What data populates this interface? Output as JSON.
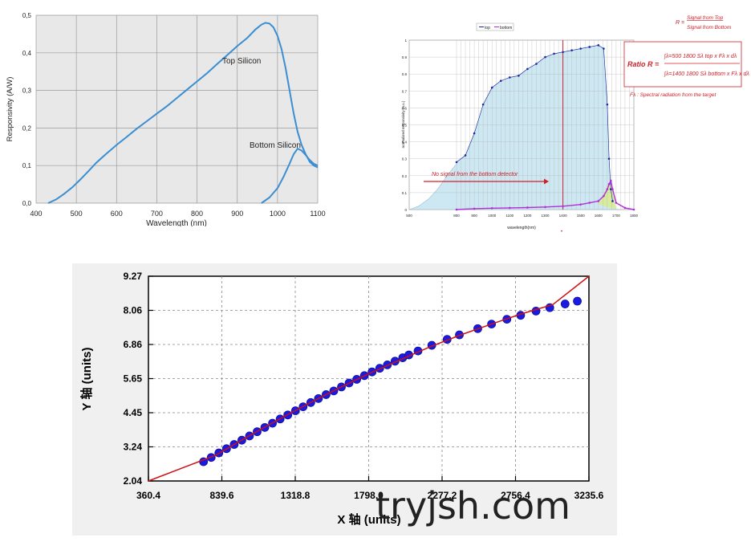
{
  "chart_data": [
    {
      "type": "line",
      "xlabel": "Wavelength (nm)",
      "ylabel": "Responsivity (A/W)",
      "xlim": [
        400,
        1100
      ],
      "ylim": [
        0,
        0.5
      ],
      "x_ticks": [
        "400",
        "500",
        "600",
        "700",
        "800",
        "900",
        "1000",
        "1100"
      ],
      "y_ticks": [
        "0,0",
        "0,1",
        "0,2",
        "0,3",
        "0,4",
        "0,5"
      ],
      "grid": true,
      "background": "#e8e8e8",
      "line_color": "#3a8ed1",
      "series": [
        {
          "name": "Top Silicon",
          "x": [
            430,
            450,
            470,
            490,
            510,
            530,
            550,
            575,
            600,
            625,
            650,
            675,
            700,
            725,
            750,
            775,
            800,
            825,
            850,
            875,
            900,
            925,
            945,
            960,
            970,
            980,
            990,
            1000,
            1010,
            1020,
            1030,
            1040,
            1050,
            1060,
            1070,
            1080,
            1090,
            1100
          ],
          "y": [
            0.0,
            0.01,
            0.025,
            0.042,
            0.063,
            0.085,
            0.108,
            0.132,
            0.155,
            0.176,
            0.198,
            0.218,
            0.238,
            0.258,
            0.28,
            0.302,
            0.324,
            0.346,
            0.37,
            0.394,
            0.418,
            0.44,
            0.462,
            0.475,
            0.48,
            0.478,
            0.468,
            0.445,
            0.41,
            0.36,
            0.3,
            0.24,
            0.19,
            0.155,
            0.13,
            0.11,
            0.1,
            0.095
          ]
        },
        {
          "name": "Bottom Silicon",
          "x": [
            960,
            980,
            1000,
            1015,
            1030,
            1040,
            1050,
            1060,
            1070,
            1080,
            1090,
            1100
          ],
          "y": [
            0.0,
            0.015,
            0.04,
            0.07,
            0.105,
            0.13,
            0.145,
            0.14,
            0.128,
            0.115,
            0.105,
            0.1
          ]
        }
      ]
    },
    {
      "type": "line",
      "xlabel": "wavelength(nm)",
      "ylabel": "normalized responsivity (a.u.)",
      "xlim": [
        500,
        1800
      ],
      "ylim": [
        0,
        1
      ],
      "x_ticks": [
        "500",
        "800",
        "900",
        "1000",
        "1100",
        "1200",
        "1300",
        "1400",
        "1500",
        "1600",
        "1700",
        "1800"
      ],
      "y_ticks": [
        "0",
        "0.1",
        "0.2",
        "0.3",
        "0.4",
        "0.5",
        "0.6",
        "0.7",
        "0.8",
        "0.9",
        "1"
      ],
      "grid": true,
      "legend": [
        "top",
        "bottom"
      ],
      "legend_position": "top",
      "marker_line_x": 1400,
      "annotation": "No signal from the bottom detector",
      "ratio_label": "R =",
      "ratio_numerator": "Signal from Top",
      "ratio_denominator": "Signal from Bottom",
      "formula_label": "Ratio R =",
      "formula_top": "∫λ=500 1800 Sλ top x Fλ x dλ",
      "formula_bottom": "∫λ=1400 1800 Sλ bottom x Fλ x dλ",
      "footnote": "Fλ : Spectral radiation from the target",
      "colors": {
        "top": "#1c2a9c",
        "bottom": "#b030d8",
        "marker": "#d0202a",
        "fill": "#cde8f2",
        "green": "#d8ec9e"
      },
      "series": [
        {
          "name": "top",
          "x": [
            800,
            850,
            900,
            950,
            1000,
            1050,
            1100,
            1150,
            1200,
            1250,
            1300,
            1350,
            1400,
            1450,
            1500,
            1550,
            1600,
            1630,
            1650,
            1660,
            1670,
            1680
          ],
          "y": [
            0.28,
            0.32,
            0.45,
            0.62,
            0.72,
            0.76,
            0.78,
            0.79,
            0.83,
            0.86,
            0.9,
            0.92,
            0.93,
            0.94,
            0.95,
            0.96,
            0.97,
            0.95,
            0.62,
            0.3,
            0.12,
            0.05
          ]
        },
        {
          "name": "bottom",
          "x": [
            800,
            900,
            1000,
            1100,
            1200,
            1300,
            1400,
            1500,
            1550,
            1600,
            1630,
            1650,
            1660,
            1670,
            1680,
            1700,
            1750,
            1800
          ],
          "y": [
            0.0,
            0.005,
            0.008,
            0.01,
            0.012,
            0.015,
            0.02,
            0.03,
            0.04,
            0.05,
            0.08,
            0.12,
            0.15,
            0.17,
            0.12,
            0.04,
            0.01,
            0.0
          ]
        }
      ]
    },
    {
      "type": "scatter",
      "xlabel": "X 轴 (units)",
      "ylabel": "Y 轴 (units)",
      "xlim": [
        360.4,
        3235.6
      ],
      "ylim": [
        2.04,
        9.27
      ],
      "x_ticks": [
        "360.4",
        "839.6",
        "1318.8",
        "1798.0",
        "2277.2",
        "2756.4",
        "3235.6"
      ],
      "y_ticks": [
        "2.04",
        "3.24",
        "4.45",
        "5.65",
        "6.86",
        "8.06",
        "9.27"
      ],
      "grid": true,
      "colors": {
        "points": "#1a1ae0",
        "fit": "#d01010"
      },
      "series": [
        {
          "name": "points",
          "x": [
            720,
            770,
            820,
            870,
            920,
            970,
            1020,
            1070,
            1120,
            1170,
            1220,
            1270,
            1320,
            1370,
            1420,
            1470,
            1520,
            1570,
            1620,
            1670,
            1720,
            1770,
            1820,
            1870,
            1920,
            1970,
            2020,
            2060,
            2120,
            2210,
            2310,
            2390,
            2510,
            2600,
            2700,
            2790,
            2890,
            2980,
            3080,
            3160
          ],
          "y": [
            2.72,
            2.87,
            3.03,
            3.18,
            3.33,
            3.48,
            3.63,
            3.78,
            3.93,
            4.08,
            4.23,
            4.37,
            4.52,
            4.66,
            4.81,
            4.95,
            5.09,
            5.22,
            5.36,
            5.5,
            5.63,
            5.76,
            5.89,
            6.02,
            6.14,
            6.27,
            6.39,
            6.49,
            6.63,
            6.83,
            7.04,
            7.2,
            7.42,
            7.58,
            7.75,
            7.89,
            8.04,
            8.16,
            8.29,
            8.39
          ]
        },
        {
          "name": "fit",
          "x": [
            360.4,
            600,
            800,
            1000,
            1200,
            1400,
            1600,
            1800,
            2000,
            2200,
            2400,
            2600,
            2800,
            3000,
            3235.6
          ],
          "y": [
            2.04,
            2.54,
            2.95,
            3.58,
            4.18,
            4.76,
            5.31,
            5.83,
            6.31,
            6.78,
            7.2,
            7.58,
            7.95,
            8.27,
            9.27
          ]
        }
      ]
    }
  ],
  "panel1": {
    "labels": {
      "top": "Top Silicon",
      "bottom": "Bottom Silicon"
    }
  },
  "watermark": "tryjsh.com"
}
